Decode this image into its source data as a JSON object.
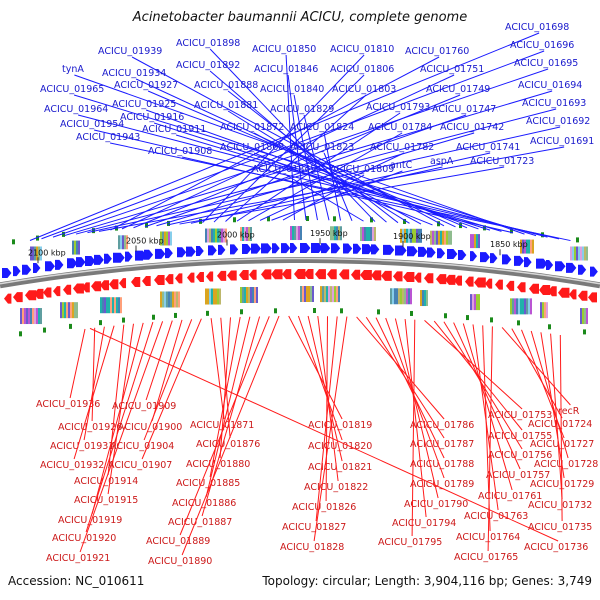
{
  "title": "Acinetobacter baumannii ACICU, complete genome",
  "footer": {
    "accession": "Accession: NC_010611",
    "summary": "Topology: circular; Length: 3,904,116 bp; Genes: 3,749"
  },
  "colors": {
    "forward": "#1a1aff",
    "reverse": "#ff1a1a",
    "backbone": "#7a7a7a",
    "marker": "#1a8a1a"
  },
  "scale_ticks": [
    "2100 kbp",
    "2050 kbp",
    "2000 kbp",
    "1950 kbp",
    "1900 kbp",
    "1850 kbp"
  ],
  "forward_labels": [
    "ACICU_01698",
    "ACICU_01696",
    "ACICU_01695",
    "ACICU_01694",
    "ACICU_01693",
    "ACICU_01692",
    "ACICU_01691",
    "ACICU_01760",
    "ACICU_01751",
    "ACICU_01749",
    "ACICU_01747",
    "ACICU_01742",
    "ACICU_01741",
    "ACICU_01723",
    "aspA",
    "ACICU_01810",
    "ACICU_01806",
    "ACICU_01803",
    "ACICU_01793",
    "ACICU_01784",
    "ACICU_01782",
    "antC",
    "ACICU_01809",
    "ACICU_01850",
    "ACICU_01846",
    "ACICU_01840",
    "ACICU_01829",
    "ACICU_01824",
    "ACICU_01823",
    "ACICU_01845",
    "ACICU_01898",
    "ACICU_01892",
    "ACICU_01888",
    "ACICU_01881",
    "ACICU_01872",
    "ACICU_01868",
    "ACICU_01939",
    "ACICU_01934",
    "ACICU_01927",
    "ACICU_01925",
    "ACICU_01916",
    "ACICU_01911",
    "ACICU_01908",
    "tynA",
    "ACICU_01965",
    "ACICU_01964",
    "ACICU_01954",
    "ACICU_01943"
  ],
  "reverse_labels": [
    "ACICU_01936",
    "ACICU_01926",
    "ACICU_01931",
    "ACICU_01932",
    "ACICU_01914",
    "ACICU_01915",
    "ACICU_01919",
    "ACICU_01920",
    "ACICU_01921",
    "ACICU_01909",
    "ACICU_01900",
    "ACICU_01904",
    "ACICU_01907",
    "ACICU_01871",
    "ACICU_01876",
    "ACICU_01880",
    "ACICU_01885",
    "ACICU_01886",
    "ACICU_01887",
    "ACICU_01889",
    "ACICU_01890",
    "ACICU_01819",
    "ACICU_01820",
    "ACICU_01821",
    "ACICU_01822",
    "ACICU_01826",
    "ACICU_01827",
    "ACICU_01828",
    "ACICU_01786",
    "ACICU_01787",
    "ACICU_01788",
    "ACICU_01789",
    "ACICU_01790",
    "ACICU_01794",
    "ACICU_01795",
    "ACICU_01753",
    "ACICU_01755",
    "ACICU_01756",
    "ACICU_01757",
    "ACICU_01761",
    "ACICU_01763",
    "ACICU_01764",
    "ACICU_01765",
    "recR",
    "ACICU_01724",
    "ACICU_01727",
    "ACICU_01728",
    "ACICU_01729",
    "ACICU_01732",
    "ACICU_01735",
    "ACICU_01736"
  ]
}
